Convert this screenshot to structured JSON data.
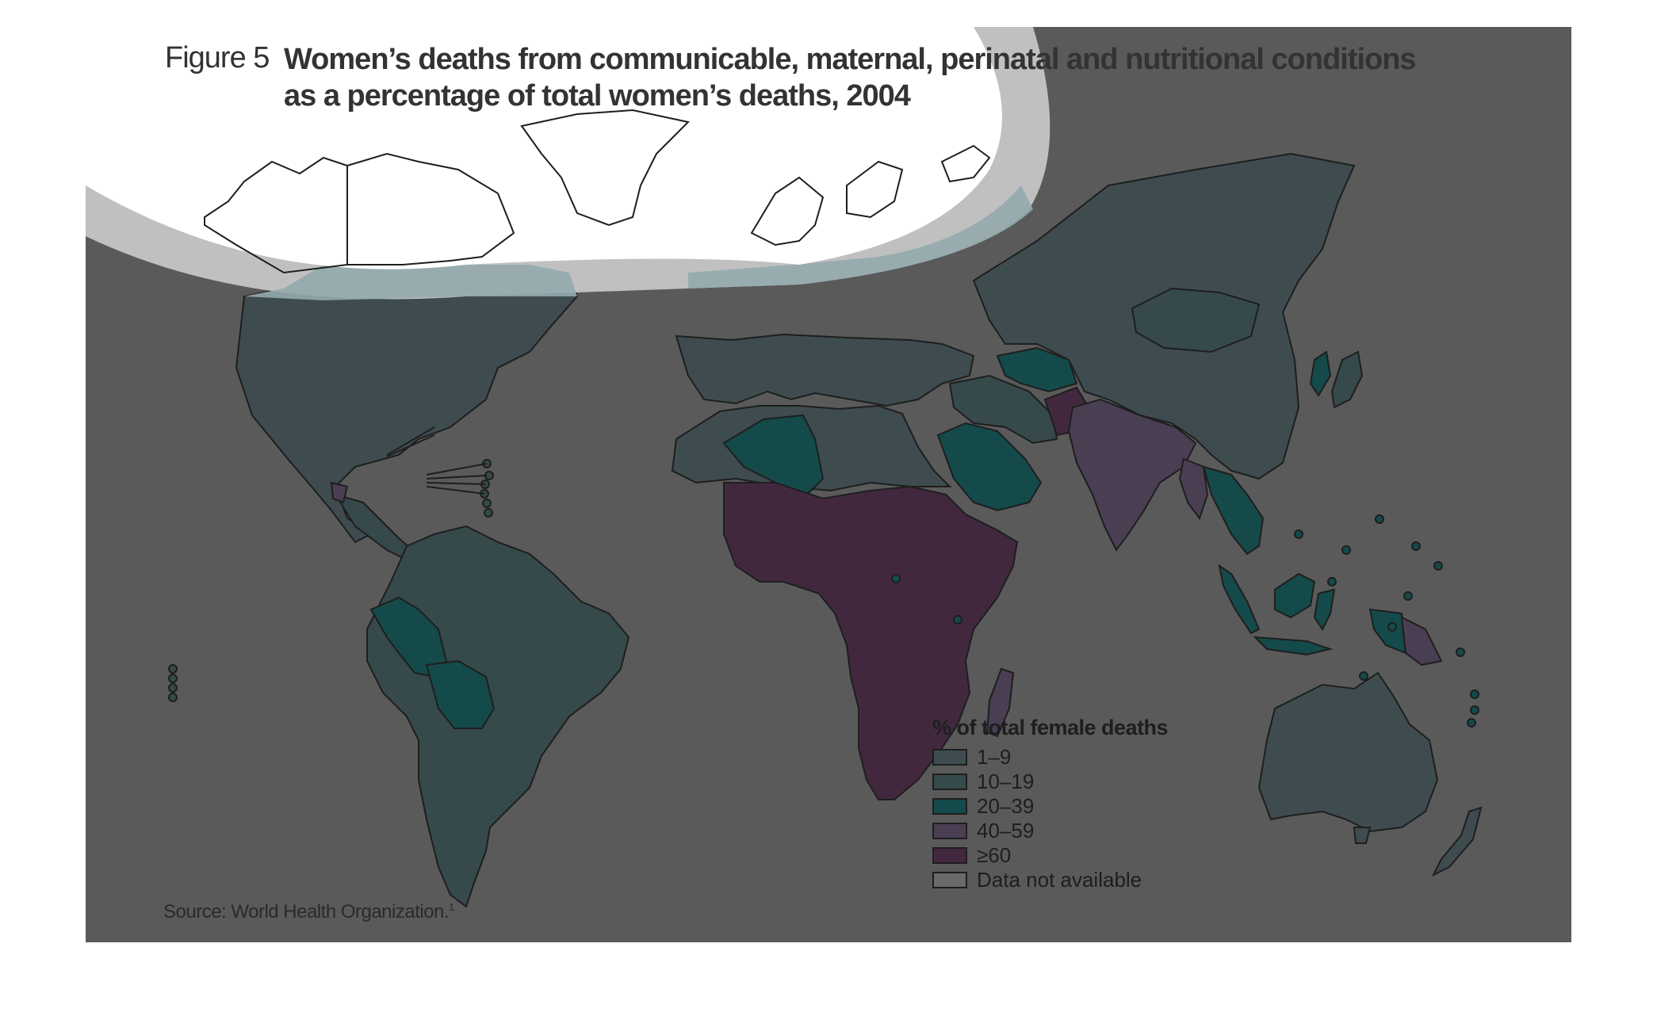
{
  "figure": {
    "label": "Figure 5",
    "title_line1": "Women’s deaths from communicable, maternal, perinatal and nutritional conditions",
    "title_line2": "as a percentage of total women’s deaths, 2004"
  },
  "legend": {
    "title": "% of total female deaths",
    "items": [
      {
        "label": "1–9",
        "color": "#3e4c50"
      },
      {
        "label": "10–19",
        "color": "#36494b"
      },
      {
        "label": "20–39",
        "color": "#154a4a"
      },
      {
        "label": "40–59",
        "color": "#4a3e52"
      },
      {
        "label": "≥60",
        "color": "#42283f"
      },
      {
        "label": "Data not available",
        "color": "#6a6a6a"
      }
    ]
  },
  "source": {
    "text": "Source: World Health Organization.",
    "footnote": "1"
  },
  "map_colors": {
    "ocean": "#5a5a5a",
    "polar_overlay": "#ffffff",
    "overlay_band": "#c0c0c0",
    "highlight_region": "#94aaae",
    "border": "#1e1e1e"
  }
}
